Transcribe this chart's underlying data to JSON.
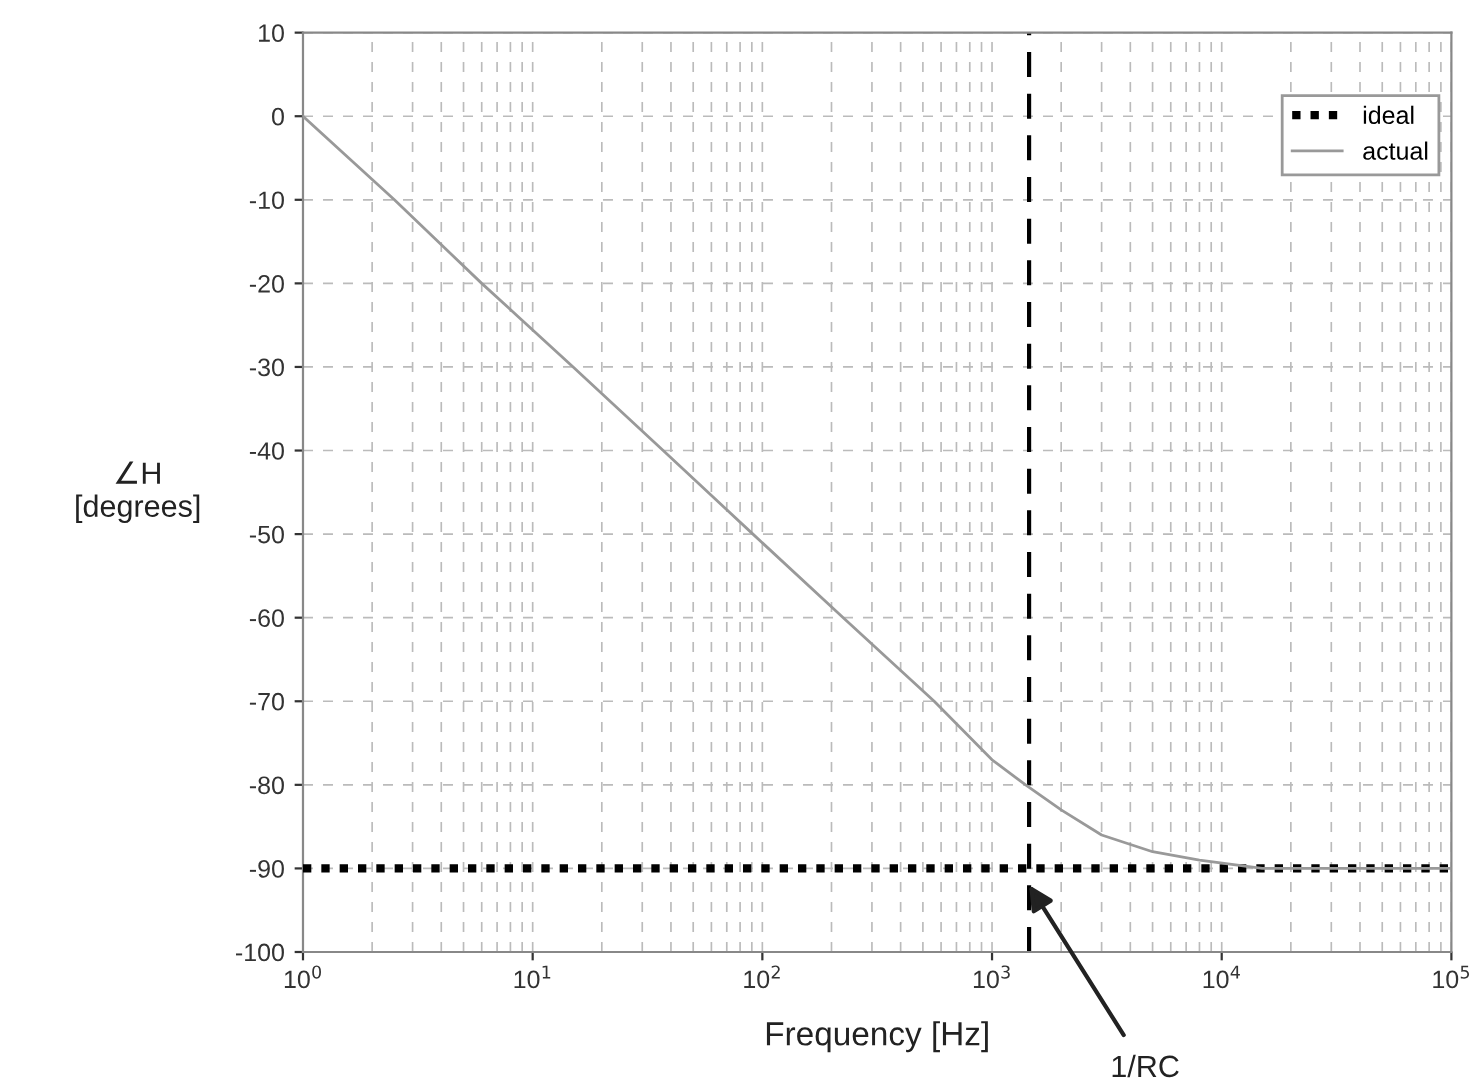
{
  "chart_data": {
    "type": "line",
    "xlabel": "Frequency [Hz]",
    "ylabel": "∠H\n[degrees]",
    "log": "x",
    "xlim": [
      1,
      100000
    ],
    "xticks": [
      {
        "value": 1,
        "label": "10$^{0}$"
      },
      {
        "value": 10,
        "label": "10$^{1}$"
      },
      {
        "value": 100,
        "label": "10$^{2}$"
      },
      {
        "value": 1000,
        "label": "10$^{3}$"
      },
      {
        "value": 10000,
        "label": "10$^{4}$"
      },
      {
        "value": 100000,
        "label": "10$^{5}$"
      }
    ],
    "ylim": [
      -100,
      10
    ],
    "yticks": [
      -100,
      -90,
      -80,
      -70,
      -60,
      -50,
      -40,
      -30,
      -20,
      -10,
      0,
      10
    ],
    "grid": true,
    "legend": "top right",
    "series": [
      {
        "name": "ideal",
        "color": "#000000",
        "line_style": "dotted",
        "x": [
          1,
          100000
        ],
        "values": [
          -90,
          -90
        ]
      },
      {
        "name": "actual",
        "color": "#999999",
        "line_style": "solid",
        "x": [
          1,
          2.5,
          6,
          15,
          37,
          91,
          225,
          560,
          1000,
          1400,
          2000,
          3000,
          5000,
          8000,
          15000,
          100000
        ],
        "values": [
          0,
          -10,
          -20,
          -30,
          -40,
          -50,
          -60,
          -70,
          -77,
          -80,
          -83,
          -86,
          -88,
          -89,
          -90,
          -90
        ]
      }
    ],
    "ref_lines": [
      {
        "axis": "x",
        "value": 1450,
        "color": "#000000",
        "line_style": "dashed"
      }
    ],
    "annotations": [
      {
        "text": "1/RC",
        "x": 1450,
        "y": -92
      }
    ]
  }
}
